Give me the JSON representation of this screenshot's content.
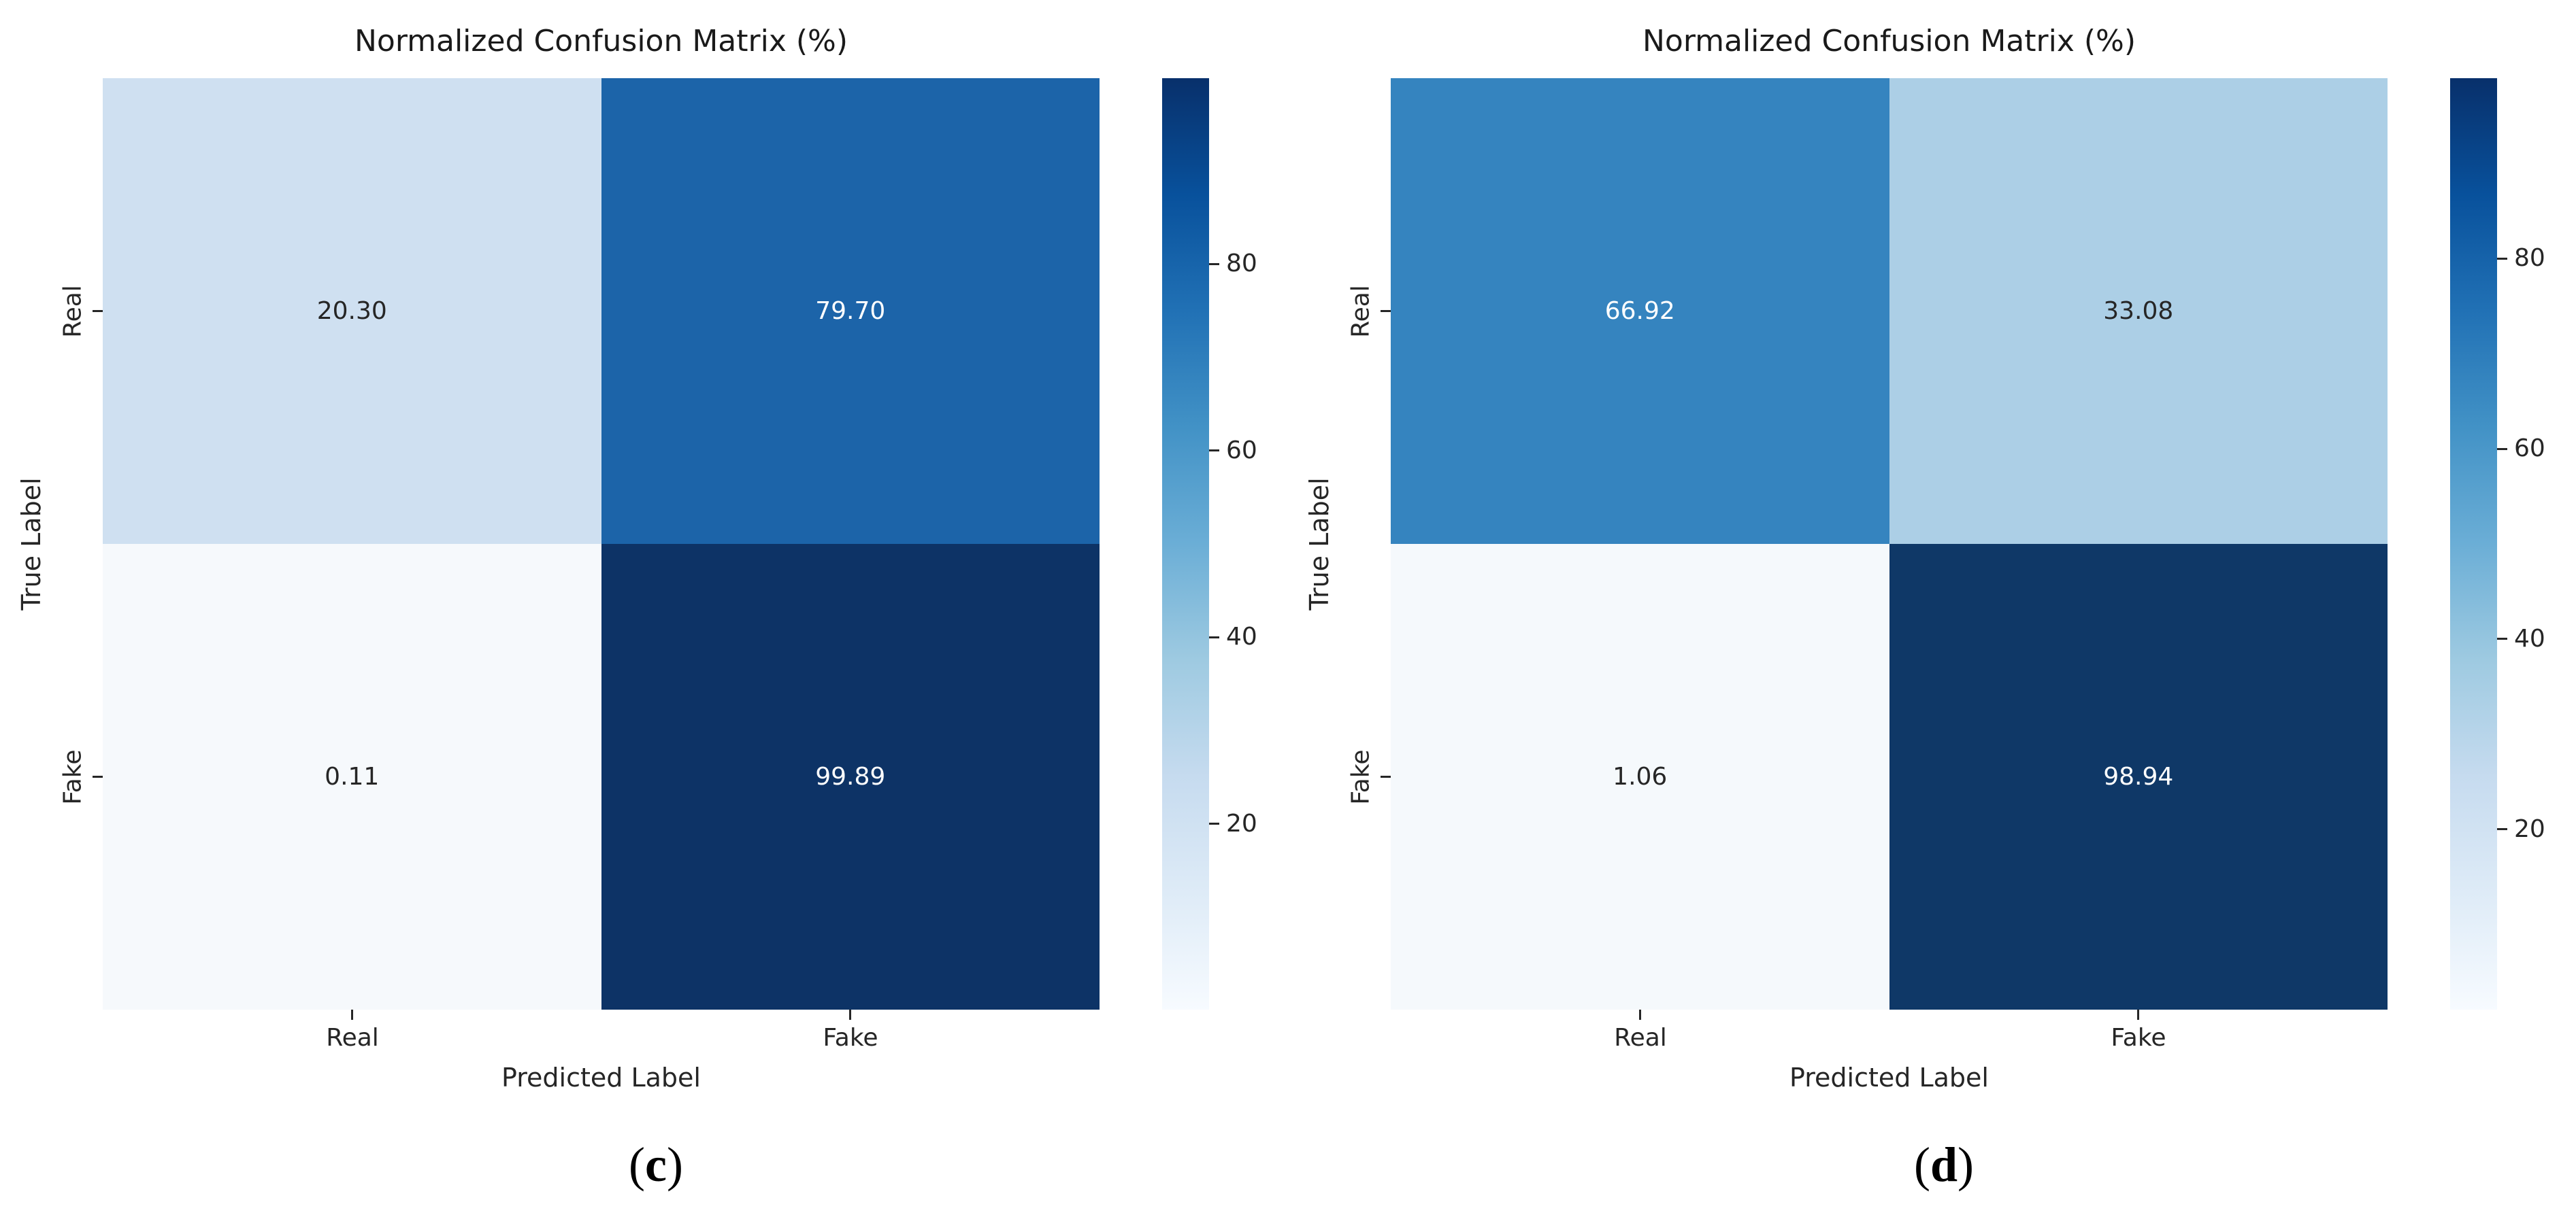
{
  "page": {
    "background": "#ffffff"
  },
  "chart_data": [
    {
      "type": "heatmap",
      "title": "Normalized Confusion Matrix (%)",
      "xlabel": "Predicted Label",
      "ylabel": "True Label",
      "x_categories": [
        "Real",
        "Fake"
      ],
      "y_categories": [
        "Real",
        "Fake"
      ],
      "values": [
        [
          20.3,
          79.7
        ],
        [
          0.11,
          99.89
        ]
      ],
      "value_labels": [
        [
          "20.30",
          "79.70"
        ],
        [
          "0.11",
          "99.89"
        ]
      ],
      "vmin": 0.11,
      "vmax": 99.89,
      "colorbar_ticks": [
        80,
        60,
        40,
        20
      ],
      "colormap": "Blues",
      "colormap_stops": [
        "#08306b",
        "#08519c",
        "#2171b5",
        "#4292c6",
        "#6baed6",
        "#9ecae1",
        "#c6dbef",
        "#deebf7",
        "#f7fbff"
      ],
      "cell_colors": [
        [
          "#cfe0f1",
          "#1c64a9"
        ],
        [
          "#f6f9fc",
          "#0d3366"
        ]
      ],
      "cell_text_colors": [
        [
          "#262626",
          "#ffffff"
        ],
        [
          "#262626",
          "#ffffff"
        ]
      ],
      "caption": {
        "open": "(",
        "letter": "c",
        "close": ")"
      }
    },
    {
      "type": "heatmap",
      "title": "Normalized Confusion Matrix (%)",
      "xlabel": "Predicted Label",
      "ylabel": "True Label",
      "x_categories": [
        "Real",
        "Fake"
      ],
      "y_categories": [
        "Real",
        "Fake"
      ],
      "values": [
        [
          66.92,
          33.08
        ],
        [
          1.06,
          98.94
        ]
      ],
      "value_labels": [
        [
          "66.92",
          "33.08"
        ],
        [
          "1.06",
          "98.94"
        ]
      ],
      "vmin": 1.06,
      "vmax": 98.94,
      "colorbar_ticks": [
        80,
        60,
        40,
        20
      ],
      "colormap": "Blues",
      "colormap_stops": [
        "#08306b",
        "#08519c",
        "#2171b5",
        "#4292c6",
        "#6baed6",
        "#9ecae1",
        "#c6dbef",
        "#deebf7",
        "#f7fbff"
      ],
      "cell_colors": [
        [
          "#3584bf",
          "#accfe6"
        ],
        [
          "#f5f9fc",
          "#0f3867"
        ]
      ],
      "cell_text_colors": [
        [
          "#ffffff",
          "#262626"
        ],
        [
          "#262626",
          "#ffffff"
        ]
      ],
      "caption": {
        "open": "(",
        "letter": "d",
        "close": ")"
      }
    }
  ]
}
